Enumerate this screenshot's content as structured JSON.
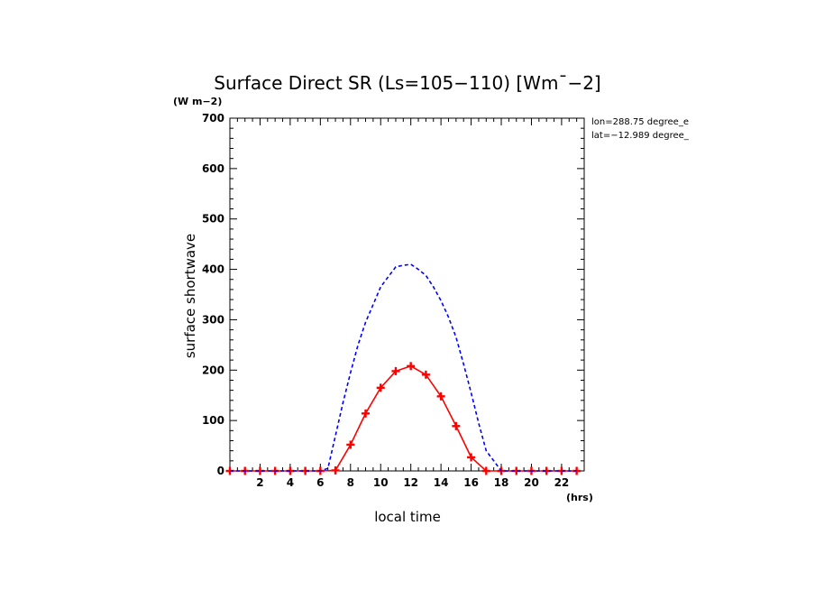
{
  "chart_data": {
    "type": "line",
    "title": "Surface Direct SR (Ls=105−110) [Wm¯−2]",
    "y_units": "(W m−2)",
    "x_units": "(hrs)",
    "xlabel": "local time",
    "ylabel": "surface shortwave",
    "annotations": [
      "lon=288.75 degree_e",
      "lat=−12.989 degree_"
    ],
    "xlim": [
      0,
      23.5
    ],
    "ylim": [
      0,
      700
    ],
    "x_ticks": [
      2,
      4,
      6,
      8,
      10,
      12,
      14,
      16,
      18,
      20,
      22
    ],
    "y_ticks": [
      0,
      100,
      200,
      300,
      400,
      500,
      600,
      700
    ],
    "grid": false,
    "series": [
      {
        "color": "#ff0000",
        "style": "solid",
        "marker": "plus",
        "x": [
          0,
          1,
          2,
          3,
          4,
          5,
          6,
          7,
          8,
          9,
          10,
          11,
          12,
          13,
          14,
          15,
          16,
          17,
          18,
          19,
          20,
          21,
          22,
          23
        ],
        "values": [
          0,
          0,
          0,
          0,
          0,
          0,
          0,
          1,
          52,
          114,
          165,
          198,
          208,
          191,
          148,
          89,
          27,
          0,
          0,
          0,
          0,
          0,
          0,
          0
        ]
      },
      {
        "color": "#0000ff",
        "style": "dashed",
        "marker": "none",
        "x": [
          0,
          1,
          2,
          3,
          4,
          5,
          6,
          6.5,
          7,
          7.5,
          8,
          8.5,
          9,
          9.5,
          10,
          10.5,
          11,
          11.5,
          12,
          12.5,
          13,
          13.5,
          14,
          14.5,
          15,
          15.5,
          16,
          16.5,
          17,
          17.5,
          18,
          19,
          20,
          21,
          22,
          23
        ],
        "values": [
          0,
          0,
          0,
          0,
          0,
          0,
          0,
          5,
          70,
          135,
          195,
          250,
          295,
          330,
          365,
          385,
          405,
          408,
          410,
          400,
          388,
          365,
          338,
          305,
          265,
          212,
          155,
          95,
          40,
          20,
          0,
          0,
          0,
          0,
          0,
          0
        ]
      }
    ]
  }
}
